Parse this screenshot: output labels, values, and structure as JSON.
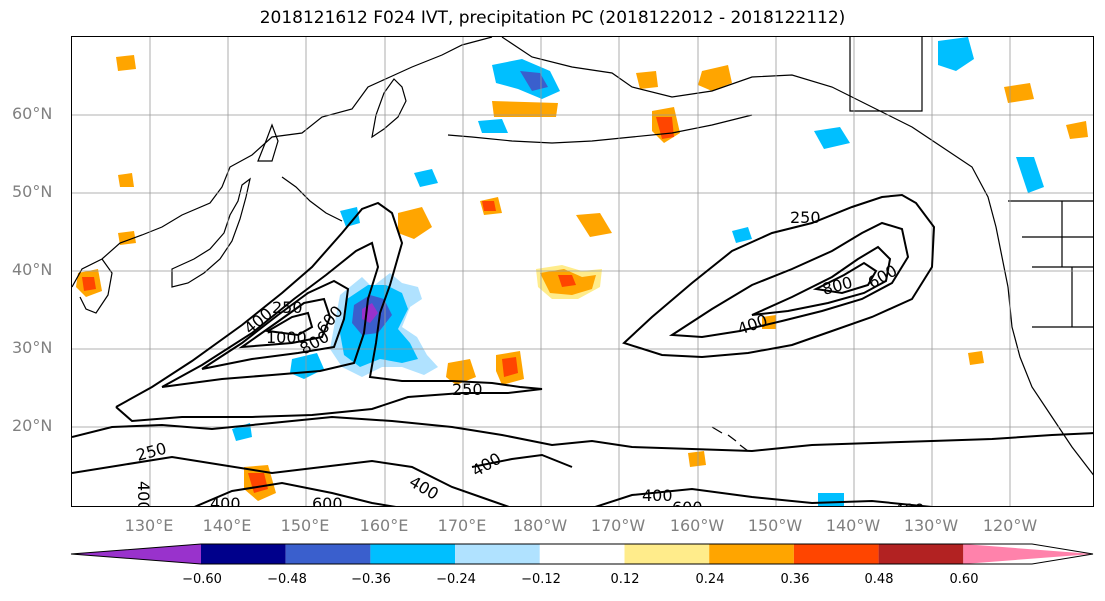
{
  "title": "2018121612 F024 IVT, precipitation PC (2018122012 - 2018122112)",
  "colors": {
    "land_line": "#000000",
    "grid": "#999999",
    "contour": "#000000",
    "pc_neg_060": "#9932cc",
    "pc_neg_048": "#00008b",
    "pc_neg_036": "#3a5fcd",
    "pc_neg_024": "#00bfff",
    "pc_neg_012": "#b0e2ff",
    "pc_zero": "#ffffff",
    "pc_pos_012": "#ffec8b",
    "pc_pos_024": "#ffa500",
    "pc_pos_036": "#ff4500",
    "pc_pos_048": "#b22222",
    "pc_pos_060": "#ff82ab"
  },
  "lat_labels": [
    "60°N",
    "50°N",
    "40°N",
    "30°N",
    "20°N"
  ],
  "lon_labels": [
    "130°E",
    "140°E",
    "150°E",
    "160°E",
    "170°E",
    "180°W",
    "170°W",
    "160°W",
    "150°W",
    "140°W",
    "130°W",
    "120°W"
  ],
  "colorbar": {
    "colors": [
      "#9932cc",
      "#00008b",
      "#3a5fcd",
      "#00bfff",
      "#b0e2ff",
      "#ffffff",
      "#ffec8b",
      "#ffa500",
      "#ff4500",
      "#b22222",
      "#ff82ab"
    ],
    "tick_labels": [
      "−0.60",
      "−0.48",
      "−0.36",
      "−0.24",
      "−0.12",
      "0.12",
      "0.24",
      "0.36",
      "0.48",
      "0.60"
    ]
  },
  "contour_labels": [
    "250",
    "400",
    "1000",
    "800",
    "600",
    "250",
    "400",
    "600",
    "400",
    "250",
    "800",
    "600",
    "400",
    "250",
    "400",
    "400",
    "400",
    "600",
    "400"
  ]
}
